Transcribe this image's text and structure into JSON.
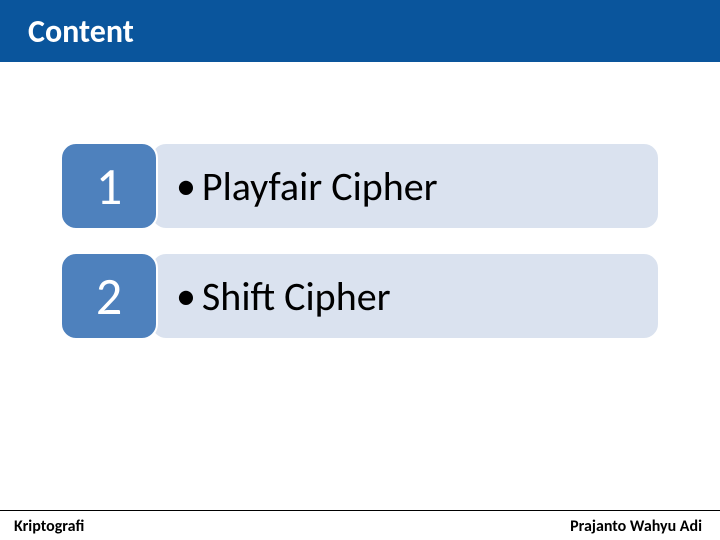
{
  "header": {
    "title": "Content"
  },
  "items": [
    {
      "number": "1",
      "label": "Playfair Cipher"
    },
    {
      "number": "2",
      "label": "Shift Cipher"
    }
  ],
  "footer": {
    "left": "Kriptografi",
    "right": "Prajanto Wahyu Adi"
  },
  "colors": {
    "header_bg": "#0a559c",
    "badge_bg": "#4e81bd",
    "pill_bg": "#dae2ef",
    "page_bg": "#ffffff",
    "title_text": "#ffffff",
    "body_text": "#000000"
  }
}
